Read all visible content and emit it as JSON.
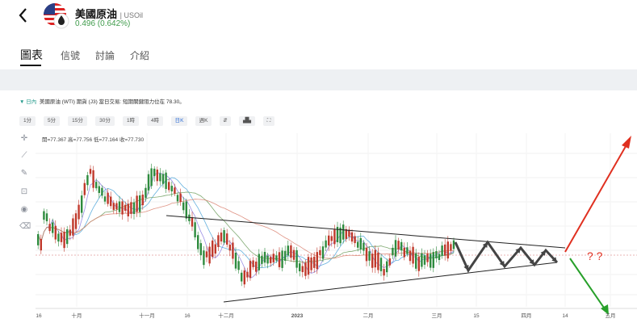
{
  "header": {
    "title": "美國原油",
    "ticker": "| USOil",
    "price": "0.496 (0.642%)"
  },
  "tabs": [
    {
      "label": "圖表",
      "active": true
    },
    {
      "label": "信號",
      "active": false
    },
    {
      "label": "討論",
      "active": false
    },
    {
      "label": "介紹",
      "active": false
    }
  ],
  "info_bar": {
    "arrow": "▼",
    "timeframe": "日內",
    "text": "美國原油 (WTI) 期貨 (J3) 當日交易: 短期關鍵阻力位在 78.30。"
  },
  "toolbar": [
    "1分",
    "5分",
    "15分",
    "30分",
    "1時",
    "4時",
    "日K",
    "週K",
    "⇵",
    "▟▙",
    "⛶"
  ],
  "toolbar_active": "日K",
  "ohlc": "開=77.367  高=77.756  低=77.164  收=77.730",
  "chart_data": {
    "type": "candlestick",
    "x_labels": [
      "16",
      "十月",
      "十一月",
      "16",
      "十二月",
      "2023",
      "二月",
      "三月",
      "15",
      "四月",
      "14",
      "五月"
    ],
    "annotations": [
      "? ?"
    ],
    "colors": {
      "up": "#2e8b3e",
      "down": "#c0392b",
      "up_arrow": "#e03020",
      "down_arrow": "#27a02a"
    }
  }
}
